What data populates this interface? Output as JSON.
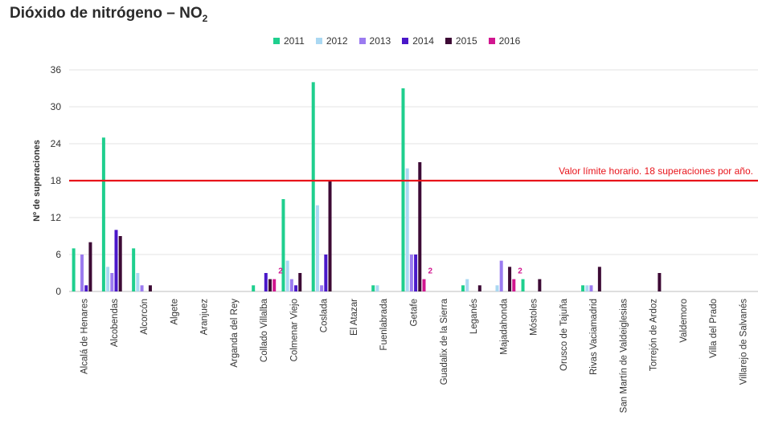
{
  "chart_data": {
    "type": "bar",
    "title": "Dióxido de nitrógeno – NO",
    "title_subscript": "2",
    "ylabel": "Nº de superaciones",
    "ylim": [
      0,
      36
    ],
    "yticks": [
      0,
      6,
      12,
      18,
      24,
      30,
      36
    ],
    "grid": true,
    "legend_position": "top",
    "categories": [
      "Alcalá de Henares",
      "Alcobendas",
      "Alcorcón",
      "Algete",
      "Aranjuez",
      "Arganda del Rey",
      "Collado Villalba",
      "Colmenar Viejo",
      "Coslada",
      "El Atazar",
      "Fuenlabrada",
      "Getafe",
      "Guadalix de la Sierra",
      "Leganés",
      "Majadahonda",
      "Móstoles",
      "Orusco de Tajuña",
      "Rivas Vaciamadrid",
      "San Martín de Valdeiglesias",
      "Torrejón de Ardoz",
      "Valdemoro",
      "Villa del Prado",
      "Villarejo de Salvanés"
    ],
    "series": [
      {
        "name": "2011",
        "color": "#1fcf8e",
        "values": [
          7,
          25,
          7,
          0,
          0,
          0,
          1,
          15,
          34,
          0,
          1,
          33,
          0,
          1,
          0,
          2,
          0,
          1,
          0,
          0,
          0,
          0,
          0
        ]
      },
      {
        "name": "2012",
        "color": "#aad8f2",
        "values": [
          0,
          4,
          3,
          0,
          0,
          0,
          0,
          5,
          14,
          0,
          1,
          20,
          0,
          2,
          1,
          0,
          0,
          1,
          0,
          0,
          0,
          0,
          0
        ]
      },
      {
        "name": "2013",
        "color": "#9b7bf0",
        "values": [
          6,
          3,
          1,
          0,
          0,
          0,
          0,
          2,
          1,
          0,
          0,
          6,
          0,
          0,
          5,
          0,
          0,
          1,
          0,
          0,
          0,
          0,
          0
        ]
      },
      {
        "name": "2014",
        "color": "#4a17c9",
        "values": [
          1,
          10,
          0,
          0,
          0,
          0,
          3,
          1,
          6,
          0,
          0,
          6,
          0,
          0,
          0,
          0,
          0,
          0,
          0,
          0,
          0,
          0,
          0
        ]
      },
      {
        "name": "2015",
        "color": "#3d0a35",
        "values": [
          8,
          9,
          1,
          0,
          0,
          0,
          2,
          3,
          18,
          0,
          0,
          21,
          0,
          1,
          4,
          2,
          0,
          4,
          0,
          3,
          0,
          0,
          0
        ]
      },
      {
        "name": "2016",
        "color": "#d1168f",
        "values": [
          0,
          0,
          0,
          0,
          0,
          0,
          2,
          0,
          0,
          0,
          0,
          2,
          0,
          0,
          2,
          0,
          0,
          0,
          0,
          0,
          0,
          0,
          0
        ]
      }
    ],
    "data_labels": [
      {
        "category": "Collado Villalba",
        "series": "2016",
        "text": "2"
      },
      {
        "category": "Getafe",
        "series": "2016",
        "text": "2"
      },
      {
        "category": "Majadahonda",
        "series": "2016",
        "text": "2"
      }
    ],
    "reference_line": {
      "value": 18,
      "label": "Valor límite horario. 18 superaciones por año.",
      "color": "#e8141b"
    }
  }
}
